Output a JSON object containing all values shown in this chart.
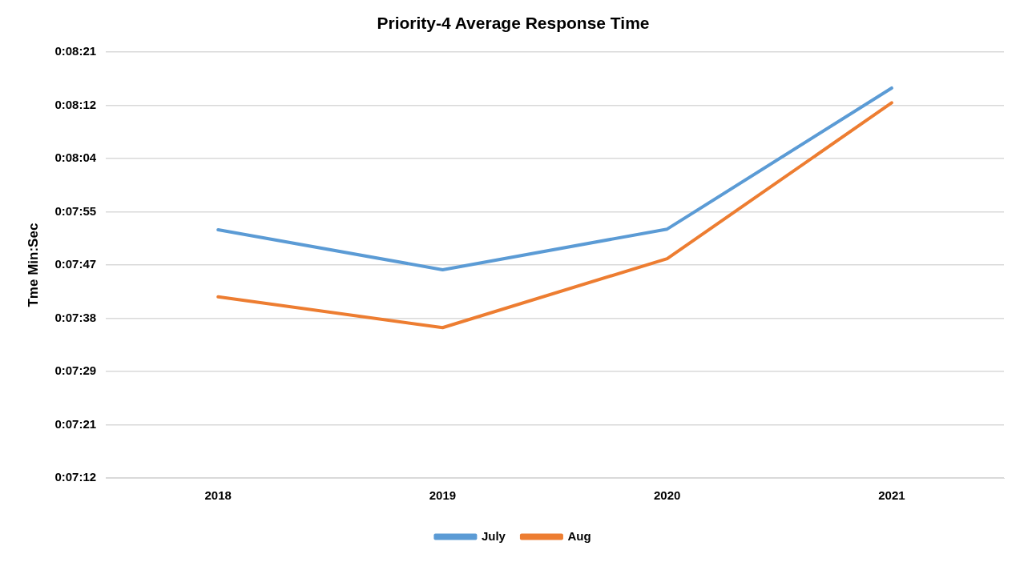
{
  "chart_data": {
    "type": "line",
    "title": "Priority-4 Average Response Time",
    "ylabel": "Tme Min:Sec",
    "categories": [
      "2018",
      "2019",
      "2020",
      "2021"
    ],
    "series": [
      {
        "name": "July",
        "color": "#5b9bd5",
        "values": [
          472.3,
          465.8,
          472.4,
          495.3
        ]
      },
      {
        "name": "Aug",
        "color": "#ed7d31",
        "values": [
          461.4,
          456.4,
          467.6,
          492.9
        ]
      }
    ],
    "ylim": [
      432,
      501.12
    ],
    "yticks": [
      {
        "value": 432,
        "label": "0:07:12"
      },
      {
        "value": 440.64,
        "label": "0:07:21"
      },
      {
        "value": 449.28,
        "label": "0:07:29"
      },
      {
        "value": 457.92,
        "label": "0:07:38"
      },
      {
        "value": 466.56,
        "label": "0:07:47"
      },
      {
        "value": 475.2,
        "label": "0:07:55"
      },
      {
        "value": 483.84,
        "label": "0:08:04"
      },
      {
        "value": 492.48,
        "label": "0:08:12"
      },
      {
        "value": 501.12,
        "label": "0:08:21"
      }
    ],
    "grid": "y",
    "legend": "bottom",
    "marker": "none",
    "line_style": "solid"
  }
}
